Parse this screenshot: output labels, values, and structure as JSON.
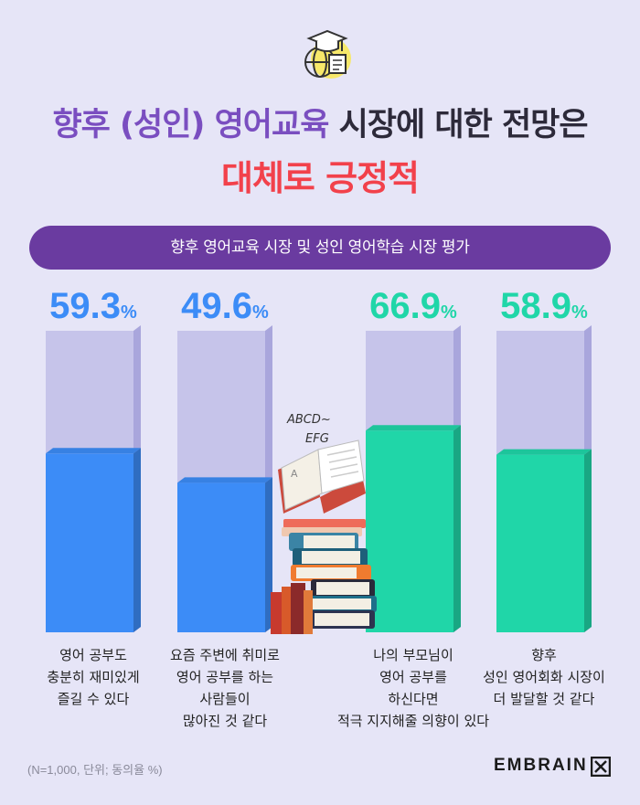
{
  "header": {
    "title_line1_highlight": "향후 (성인) 영어교육",
    "title_line1_rest": " 시장에 대한 전망은",
    "title_line2": "대체로 긍정적",
    "subtitle": "향후 영어교육 시장 및 성인 영어학습 시장 평가"
  },
  "illustration": {
    "book_text_1": "ABCD~",
    "book_text_2": "EFG",
    "book_page_letter": "A"
  },
  "chart_data": {
    "type": "bar",
    "unit": "%",
    "ylim": [
      0,
      100
    ],
    "categories": [
      "영어 공부도 충분히 재미있게 즐길 수 있다",
      "요즘 주변에 취미로 영어 공부를 하는 사람들이 많아진 것 같다",
      "나의 부모님이 영어 공부를 하신다면 적극 지지해줄 의향이 있다",
      "향후 성인 영어회화 시장이 더 발달할 것 같다"
    ],
    "values": [
      59.3,
      49.6,
      66.9,
      58.9
    ],
    "value_labels": [
      "59.3",
      "49.6",
      "66.9",
      "58.9"
    ],
    "category_lines": [
      [
        "영어 공부도",
        "충분히 재미있게",
        "즐길 수 있다"
      ],
      [
        "요즘 주변에 취미로",
        "영어 공부를 하는",
        "사람들이",
        "많아진 것 같다"
      ],
      [
        "나의 부모님이",
        "영어 공부를",
        "하신다면",
        "적극 지지해줄 의향이 있다"
      ],
      [
        "향후",
        "성인 영어회화 시장이",
        "더 발달할 것 같다"
      ]
    ],
    "colors": {
      "blue": "#3c8cf7",
      "teal": "#20d6a8",
      "track": "#c6c4ea"
    },
    "bar_colors": [
      "blue",
      "blue",
      "teal",
      "teal"
    ]
  },
  "footer": {
    "note": "(N=1,000, 단위; 동의율 %)",
    "brand": "EMBRAIN"
  }
}
